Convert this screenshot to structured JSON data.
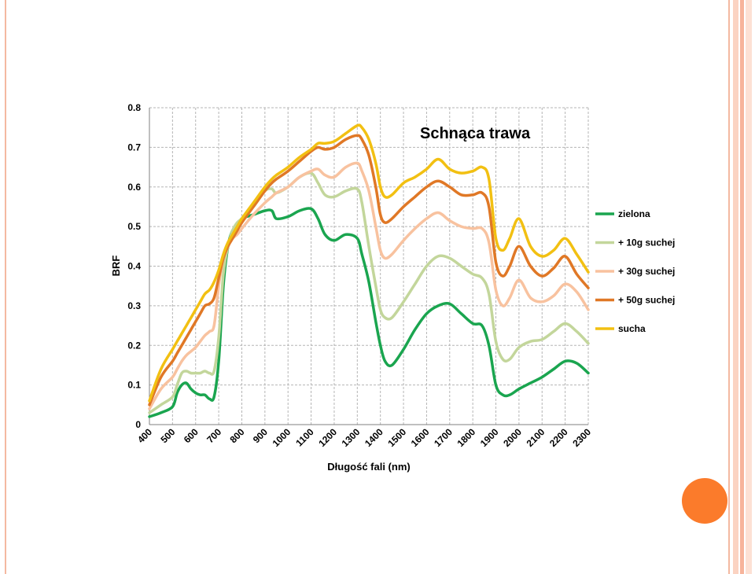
{
  "slide": {
    "frame_color": "#f4b9a1",
    "stripe_colors": [
      "#fbd3c2",
      "#f7b49b",
      "#fde1d4"
    ],
    "circle_color": "#fb7b2b"
  },
  "chart_data": {
    "type": "line",
    "title": "Schnąca trawa",
    "xlabel": "Długość fali  (nm)",
    "ylabel": "BRF",
    "xlim": [
      400,
      2300
    ],
    "ylim": [
      0,
      0.8
    ],
    "x_ticks": [
      "400",
      "500",
      "600",
      "700",
      "800",
      "900",
      "1000",
      "1100",
      "1200",
      "1300",
      "1400",
      "1500",
      "1600",
      "1700",
      "1800",
      "1900",
      "2000",
      "2100",
      "2200",
      "2300"
    ],
    "y_ticks": [
      "0",
      "0.1",
      "0.2",
      "0.3",
      "0.4",
      "0.5",
      "0.6",
      "0.7",
      "0.8"
    ],
    "grid": true,
    "legend_position": "right",
    "series": [
      {
        "name": "zielona",
        "color": "#1aa54f",
        "x": [
          400,
          450,
          500,
          520,
          540,
          560,
          580,
          600,
          620,
          640,
          660,
          680,
          700,
          720,
          740,
          760,
          780,
          800,
          850,
          900,
          930,
          950,
          1000,
          1050,
          1100,
          1130,
          1160,
          1200,
          1250,
          1300,
          1320,
          1350,
          1380,
          1400,
          1420,
          1450,
          1500,
          1550,
          1600,
          1650,
          1700,
          1750,
          1800,
          1840,
          1870,
          1900,
          1930,
          1960,
          2000,
          2050,
          2100,
          2150,
          2200,
          2250,
          2300
        ],
        "y": [
          0.02,
          0.03,
          0.045,
          0.08,
          0.1,
          0.105,
          0.09,
          0.08,
          0.075,
          0.075,
          0.065,
          0.07,
          0.16,
          0.35,
          0.45,
          0.49,
          0.5,
          0.52,
          0.53,
          0.54,
          0.54,
          0.52,
          0.525,
          0.54,
          0.545,
          0.52,
          0.48,
          0.465,
          0.48,
          0.47,
          0.43,
          0.36,
          0.26,
          0.2,
          0.16,
          0.15,
          0.19,
          0.24,
          0.28,
          0.3,
          0.305,
          0.28,
          0.255,
          0.25,
          0.2,
          0.1,
          0.075,
          0.075,
          0.09,
          0.105,
          0.12,
          0.14,
          0.16,
          0.155,
          0.13
        ]
      },
      {
        "name": "+ 10g suchej",
        "color": "#c3d69b",
        "x": [
          400,
          450,
          500,
          520,
          540,
          560,
          580,
          600,
          620,
          640,
          660,
          680,
          700,
          720,
          740,
          760,
          780,
          800,
          850,
          900,
          930,
          950,
          1000,
          1050,
          1100,
          1130,
          1160,
          1200,
          1250,
          1300,
          1320,
          1350,
          1380,
          1400,
          1420,
          1450,
          1500,
          1550,
          1600,
          1650,
          1700,
          1750,
          1800,
          1840,
          1870,
          1900,
          1930,
          1960,
          2000,
          2050,
          2100,
          2150,
          2200,
          2250,
          2300
        ],
        "y": [
          0.03,
          0.05,
          0.07,
          0.1,
          0.13,
          0.135,
          0.13,
          0.13,
          0.13,
          0.135,
          0.13,
          0.135,
          0.22,
          0.38,
          0.45,
          0.49,
          0.51,
          0.52,
          0.55,
          0.59,
          0.595,
          0.585,
          0.6,
          0.625,
          0.635,
          0.61,
          0.58,
          0.575,
          0.59,
          0.595,
          0.56,
          0.45,
          0.35,
          0.29,
          0.27,
          0.27,
          0.31,
          0.355,
          0.4,
          0.425,
          0.42,
          0.4,
          0.38,
          0.37,
          0.33,
          0.21,
          0.165,
          0.165,
          0.195,
          0.21,
          0.215,
          0.235,
          0.255,
          0.235,
          0.205
        ]
      },
      {
        "name": "+ 30g suchej",
        "color": "#f8c29f",
        "x": [
          400,
          450,
          500,
          520,
          540,
          560,
          580,
          600,
          620,
          640,
          660,
          680,
          700,
          720,
          740,
          760,
          780,
          800,
          850,
          900,
          930,
          950,
          1000,
          1050,
          1100,
          1130,
          1160,
          1200,
          1250,
          1300,
          1320,
          1350,
          1380,
          1400,
          1420,
          1450,
          1500,
          1550,
          1600,
          1650,
          1700,
          1750,
          1800,
          1840,
          1870,
          1900,
          1930,
          1960,
          2000,
          2050,
          2100,
          2150,
          2200,
          2250,
          2300
        ],
        "y": [
          0.04,
          0.09,
          0.12,
          0.14,
          0.16,
          0.175,
          0.185,
          0.195,
          0.21,
          0.225,
          0.235,
          0.25,
          0.35,
          0.42,
          0.45,
          0.47,
          0.48,
          0.495,
          0.53,
          0.56,
          0.575,
          0.585,
          0.6,
          0.625,
          0.64,
          0.645,
          0.63,
          0.625,
          0.65,
          0.66,
          0.64,
          0.59,
          0.5,
          0.44,
          0.42,
          0.43,
          0.465,
          0.495,
          0.52,
          0.535,
          0.515,
          0.5,
          0.495,
          0.495,
          0.46,
          0.34,
          0.3,
          0.32,
          0.365,
          0.32,
          0.31,
          0.325,
          0.355,
          0.335,
          0.29
        ]
      },
      {
        "name": "+ 50g suchej",
        "color": "#e07826",
        "x": [
          400,
          450,
          500,
          520,
          540,
          560,
          580,
          600,
          620,
          640,
          660,
          680,
          700,
          720,
          740,
          760,
          780,
          800,
          850,
          900,
          930,
          950,
          1000,
          1050,
          1100,
          1130,
          1160,
          1200,
          1250,
          1300,
          1320,
          1350,
          1380,
          1400,
          1420,
          1450,
          1500,
          1550,
          1600,
          1650,
          1700,
          1750,
          1800,
          1840,
          1870,
          1900,
          1930,
          1960,
          2000,
          2050,
          2100,
          2150,
          2200,
          2250,
          2300
        ],
        "y": [
          0.05,
          0.12,
          0.16,
          0.18,
          0.2,
          0.22,
          0.24,
          0.26,
          0.28,
          0.3,
          0.305,
          0.32,
          0.37,
          0.42,
          0.45,
          0.47,
          0.49,
          0.51,
          0.55,
          0.59,
          0.61,
          0.62,
          0.64,
          0.665,
          0.69,
          0.7,
          0.695,
          0.7,
          0.72,
          0.73,
          0.72,
          0.68,
          0.6,
          0.53,
          0.51,
          0.52,
          0.55,
          0.575,
          0.6,
          0.615,
          0.6,
          0.58,
          0.58,
          0.585,
          0.55,
          0.41,
          0.375,
          0.4,
          0.45,
          0.4,
          0.375,
          0.395,
          0.425,
          0.38,
          0.345
        ]
      },
      {
        "name": "sucha",
        "color": "#f2c012",
        "x": [
          400,
          450,
          500,
          520,
          540,
          560,
          580,
          600,
          620,
          640,
          660,
          680,
          700,
          720,
          740,
          760,
          780,
          800,
          850,
          900,
          930,
          950,
          1000,
          1050,
          1100,
          1130,
          1160,
          1200,
          1250,
          1300,
          1320,
          1350,
          1380,
          1400,
          1420,
          1450,
          1500,
          1550,
          1600,
          1650,
          1700,
          1750,
          1800,
          1840,
          1870,
          1900,
          1930,
          1960,
          2000,
          2050,
          2100,
          2150,
          2200,
          2250,
          2300
        ],
        "y": [
          0.06,
          0.14,
          0.19,
          0.21,
          0.23,
          0.25,
          0.27,
          0.29,
          0.31,
          0.33,
          0.34,
          0.36,
          0.39,
          0.43,
          0.46,
          0.48,
          0.5,
          0.52,
          0.56,
          0.6,
          0.62,
          0.63,
          0.65,
          0.675,
          0.695,
          0.71,
          0.71,
          0.715,
          0.735,
          0.755,
          0.75,
          0.72,
          0.66,
          0.6,
          0.575,
          0.58,
          0.61,
          0.625,
          0.645,
          0.67,
          0.645,
          0.635,
          0.64,
          0.65,
          0.62,
          0.47,
          0.44,
          0.47,
          0.52,
          0.45,
          0.425,
          0.44,
          0.47,
          0.43,
          0.385
        ]
      }
    ]
  }
}
